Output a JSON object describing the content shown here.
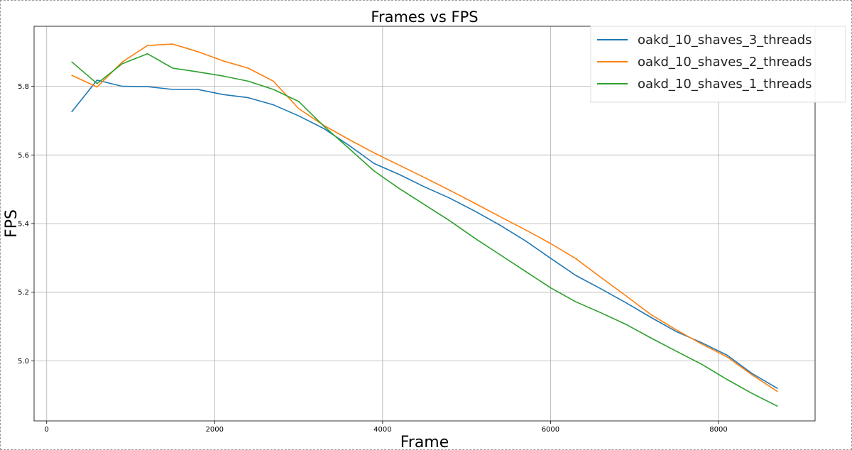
{
  "chart_data": {
    "type": "line",
    "title": "Frames vs FPS",
    "xlabel": "Frame",
    "ylabel": "FPS",
    "xlim": [
      -150,
      9150
    ],
    "ylim": [
      4.825,
      5.975
    ],
    "xticks": [
      0,
      2000,
      4000,
      6000,
      8000
    ],
    "xtick_labels": [
      "0",
      "2000",
      "4000",
      "6000",
      "8000"
    ],
    "yticks": [
      5.0,
      5.2,
      5.4,
      5.6,
      5.8
    ],
    "ytick_labels": [
      "5.0",
      "5.2",
      "5.4",
      "5.6",
      "5.8"
    ],
    "grid": true,
    "legend_position": "top-right",
    "x": [
      300,
      600,
      900,
      1200,
      1500,
      1800,
      2100,
      2400,
      2700,
      3000,
      3300,
      3600,
      3900,
      4200,
      4500,
      4800,
      5100,
      5400,
      5700,
      6000,
      6300,
      6600,
      6900,
      7200,
      7500,
      7800,
      8100,
      8400,
      8700
    ],
    "series": [
      {
        "name": "oakd_10_shaves_3_threads",
        "color": "#1f77b4",
        "values": [
          5.726,
          5.818,
          5.8,
          5.799,
          5.791,
          5.791,
          5.776,
          5.767,
          5.746,
          5.714,
          5.677,
          5.628,
          5.575,
          5.543,
          5.507,
          5.474,
          5.436,
          5.395,
          5.35,
          5.299,
          5.249,
          5.21,
          5.169,
          5.126,
          5.085,
          5.053,
          5.017,
          4.963,
          4.92
        ]
      },
      {
        "name": "oakd_10_shaves_2_threads",
        "color": "#ff7f0e",
        "values": [
          5.832,
          5.798,
          5.871,
          5.919,
          5.923,
          5.901,
          5.874,
          5.853,
          5.815,
          5.735,
          5.686,
          5.645,
          5.606,
          5.57,
          5.534,
          5.497,
          5.459,
          5.42,
          5.382,
          5.342,
          5.298,
          5.243,
          5.189,
          5.134,
          5.09,
          5.049,
          5.012,
          4.959,
          4.911
        ]
      },
      {
        "name": "oakd_10_shaves_1_threads",
        "color": "#2ca02c",
        "values": [
          5.871,
          5.808,
          5.866,
          5.895,
          5.853,
          5.842,
          5.83,
          5.815,
          5.791,
          5.756,
          5.684,
          5.619,
          5.553,
          5.502,
          5.455,
          5.408,
          5.357,
          5.309,
          5.261,
          5.213,
          5.172,
          5.14,
          5.106,
          5.066,
          5.028,
          4.99,
          4.946,
          4.905,
          4.868
        ]
      }
    ]
  }
}
